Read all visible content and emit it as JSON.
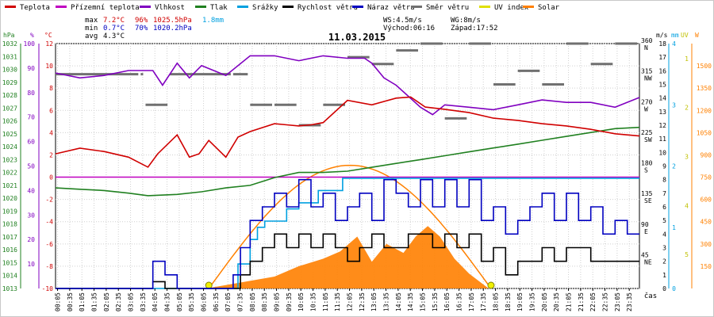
{
  "chart_data": {
    "type": "line",
    "title": "11.03.2015",
    "x_unit_label": "čas",
    "x_ticks": [
      "00:05",
      "00:35",
      "01:05",
      "01:35",
      "02:05",
      "02:35",
      "03:05",
      "03:35",
      "04:05",
      "04:35",
      "05:05",
      "05:35",
      "06:05",
      "06:35",
      "07:05",
      "07:35",
      "08:05",
      "08:35",
      "09:05",
      "09:35",
      "10:05",
      "10:35",
      "11:05",
      "11:35",
      "12:05",
      "12:35",
      "13:05",
      "13:35",
      "14:05",
      "14:35",
      "15:05",
      "15:35",
      "16:05",
      "16:35",
      "17:05",
      "17:35",
      "18:05",
      "18:35",
      "19:05",
      "19:35",
      "20:05",
      "20:35",
      "21:05",
      "21:35",
      "22:05",
      "22:35",
      "23:05",
      "23:35"
    ],
    "legend": [
      {
        "name": "Teplota",
        "color": "#d00000"
      },
      {
        "name": "Přízemní teplota",
        "color": "#c000c0"
      },
      {
        "name": "Vlhkost",
        "color": "#8000c0"
      },
      {
        "name": "Tlak",
        "color": "#208020"
      },
      {
        "name": "Srážky",
        "color": "#00a0e0"
      },
      {
        "name": "Rychlost větru",
        "color": "#000000"
      },
      {
        "name": "Náraz větru",
        "color": "#0000c0"
      },
      {
        "name": "Směr větru",
        "color": "#707070"
      },
      {
        "name": "UV index",
        "color": "#e0e000"
      },
      {
        "name": "Solar",
        "color": "#ff8000"
      }
    ],
    "stats": {
      "max_label": "max",
      "max_temp": "7.2°C",
      "max_hum": "96%",
      "max_press": "1025.5hPa",
      "rain": "1.8mm",
      "min_label": "min",
      "min_temp": "0.7°C",
      "min_hum": "70%",
      "min_press": "1020.2hPa",
      "avg_label": "avg",
      "avg_temp": "4.3°C",
      "ws": "WS:4.5m/s",
      "wg": "WG:8m/s",
      "sunrise": "Východ:06:16",
      "sunset": "Západ:17:52"
    },
    "axes": {
      "hpa": {
        "label": "hPa",
        "ticks": [
          "1032",
          "1031",
          "1030",
          "1029",
          "1028",
          "1027",
          "1026",
          "1025",
          "1024",
          "1023",
          "1022",
          "1021",
          "1020",
          "1019",
          "1018",
          "1017",
          "1016",
          "1015",
          "1014",
          "1013"
        ]
      },
      "pct": {
        "label": "%",
        "ticks": [
          "100",
          "90",
          "80",
          "70",
          "60",
          "50",
          "40",
          "30",
          "20",
          "10"
        ]
      },
      "degc": {
        "label": "°C",
        "ticks": [
          "12",
          "10",
          "8",
          "6",
          "4",
          "2",
          "0",
          "-2",
          "-4",
          "-6",
          "-8",
          "-10"
        ]
      },
      "dir": {
        "ticks": [
          "360",
          "N",
          "315",
          "NW",
          "270",
          "W",
          "225",
          "SW",
          "180",
          "S",
          "135",
          "SE",
          "90",
          "E",
          "45",
          "NE"
        ]
      },
      "ms": {
        "label": "m/s",
        "ticks": [
          "18",
          "17",
          "16",
          "15",
          "14",
          "13",
          "12",
          "11",
          "10",
          "9",
          "8",
          "7",
          "6",
          "5",
          "4",
          "3",
          "2",
          "1",
          "0"
        ]
      },
      "mm": {
        "label": "mm",
        "ticks": [
          "4",
          "3",
          "2",
          "1",
          "0"
        ]
      },
      "uv": {
        "label": "UV",
        "ticks": [
          "5",
          "4",
          "3",
          "2",
          "1"
        ]
      },
      "w": {
        "label": "W",
        "ticks": [
          "1500",
          "1350",
          "1200",
          "1050",
          "900",
          "750",
          "600",
          "450",
          "300",
          "150"
        ]
      }
    },
    "series": [
      {
        "name": "Teplota",
        "unit": "°C",
        "x": [
          0,
          1,
          2,
          3,
          3.8,
          4.2,
          5,
          5.5,
          5.9,
          6.3,
          7,
          7.5,
          8,
          9,
          9.5,
          10,
          10.5,
          11,
          12,
          13,
          14,
          14.6,
          15.2,
          16,
          17,
          18,
          19,
          20,
          21,
          22,
          23,
          24
        ],
        "values": [
          2.1,
          2.6,
          2.3,
          1.8,
          0.9,
          2.1,
          3.8,
          1.8,
          2.1,
          3.3,
          1.8,
          3.6,
          4.1,
          4.8,
          4.7,
          4.6,
          4.7,
          4.9,
          6.9,
          6.5,
          7.1,
          7.2,
          6.3,
          6.1,
          5.8,
          5.3,
          5.1,
          4.8,
          4.6,
          4.3,
          3.9,
          3.7
        ]
      },
      {
        "name": "Vlhkost",
        "unit": "%",
        "x": [
          0,
          1,
          2,
          3,
          4,
          4.4,
          5,
          5.5,
          6,
          7,
          8,
          9,
          10,
          11,
          12,
          12.7,
          13,
          13.5,
          14,
          15,
          15.5,
          16,
          17,
          18,
          19,
          20,
          21,
          22,
          23,
          24
        ],
        "values": [
          88,
          86,
          87,
          89,
          89,
          83,
          92,
          86,
          91,
          87,
          95,
          95,
          93,
          95,
          94,
          94,
          92,
          86,
          83,
          74,
          71,
          75,
          74,
          73,
          75,
          77,
          76,
          76,
          74,
          78
        ]
      },
      {
        "name": "Tlak",
        "unit": "hPa",
        "x": [
          0,
          1,
          2,
          3,
          3.8,
          5,
          6,
          7,
          8,
          9,
          10,
          11,
          12,
          13,
          14,
          15,
          16,
          17,
          18,
          19,
          20,
          21,
          22,
          23,
          24
        ],
        "values": [
          1020.8,
          1020.7,
          1020.6,
          1020.4,
          1020.2,
          1020.3,
          1020.5,
          1020.8,
          1021.0,
          1021.6,
          1022.0,
          1022.0,
          1022.1,
          1022.4,
          1022.7,
          1023.0,
          1023.3,
          1023.6,
          1023.9,
          1024.2,
          1024.5,
          1024.8,
          1025.1,
          1025.4,
          1025.5
        ]
      },
      {
        "name": "Srážky",
        "unit": "mm",
        "x": [
          0,
          7,
          7.5,
          8,
          8.3,
          8.6,
          9,
          9.5,
          10,
          10.8,
          11.2,
          11.8,
          12.2,
          24
        ],
        "values": [
          0,
          0,
          0.4,
          0.8,
          1.0,
          1.1,
          1.1,
          1.3,
          1.4,
          1.6,
          1.6,
          1.8,
          1.8,
          1.8
        ]
      },
      {
        "name": "Rychlost větru",
        "unit": "m/s",
        "x": [
          0,
          3.7,
          4,
          4.5,
          5,
          7,
          7.6,
          8,
          8.5,
          9,
          9.5,
          10,
          10.5,
          11,
          11.5,
          12,
          12.5,
          13,
          13.5,
          14,
          14.5,
          15,
          15.5,
          16,
          16.5,
          17,
          17.5,
          18,
          18.5,
          19,
          19.5,
          20,
          20.5,
          21,
          21.5,
          22,
          22.5,
          23,
          23.5,
          24
        ],
        "values": [
          0,
          0,
          0.5,
          0,
          0,
          0,
          1,
          2,
          3,
          4,
          3,
          4,
          3,
          4,
          3,
          2,
          3,
          4,
          3,
          3,
          4,
          4,
          3,
          4,
          3,
          4,
          2,
          3,
          1,
          2,
          2,
          3,
          2,
          3,
          3,
          2,
          2,
          2,
          2,
          2
        ]
      },
      {
        "name": "Náraz větru",
        "unit": "m/s",
        "x": [
          0,
          3.7,
          4,
          4.5,
          5,
          7,
          7.3,
          7.6,
          8,
          8.5,
          9,
          9.5,
          10,
          10.5,
          11,
          11.5,
          12,
          12.5,
          13,
          13.5,
          14,
          14.5,
          15,
          15.5,
          16,
          16.5,
          17,
          17.5,
          18,
          18.5,
          19,
          19.5,
          20,
          20.5,
          21,
          21.5,
          22,
          22.5,
          23,
          23.5,
          24
        ],
        "values": [
          0,
          0,
          2,
          1,
          0,
          0,
          1,
          3,
          5,
          6,
          7,
          6,
          8,
          6,
          7,
          5,
          6,
          7,
          5,
          8,
          7,
          6,
          8,
          6,
          8,
          6,
          8,
          5,
          6,
          4,
          5,
          6,
          7,
          5,
          7,
          5,
          6,
          4,
          5,
          4,
          4
        ]
      },
      {
        "name": "Přízemní teplota",
        "unit": "°C",
        "x": [
          0,
          24
        ],
        "values": [
          0,
          0
        ]
      },
      {
        "name": "Solar",
        "unit": "W",
        "x": [
          6.2,
          9,
          10,
          11,
          11.7,
          12.4,
          13,
          13.6,
          14.3,
          14.8,
          15.3,
          15.8,
          16.4,
          17,
          17.8
        ],
        "values": [
          0,
          80,
          150,
          200,
          250,
          350,
          180,
          300,
          240,
          350,
          420,
          350,
          200,
          100,
          0
        ]
      },
      {
        "name": "Solar (theoretical)",
        "unit": "W",
        "x": [
          6.3,
          12.1,
          17.9
        ],
        "values": [
          0,
          830,
          0
        ]
      },
      {
        "name": "Směr větru",
        "unit": "°",
        "x": [
          0,
          3.5,
          3.7,
          4.7,
          7.3,
          8,
          9,
          10,
          11,
          12,
          13,
          14,
          15,
          16,
          17,
          18,
          19,
          20,
          21,
          22,
          23,
          24
        ],
        "values": [
          315,
          315,
          270,
          315,
          315,
          270,
          270,
          240,
          270,
          340,
          330,
          350,
          360,
          250,
          360,
          300,
          320,
          300,
          360,
          330,
          360,
          360
        ]
      }
    ]
  }
}
